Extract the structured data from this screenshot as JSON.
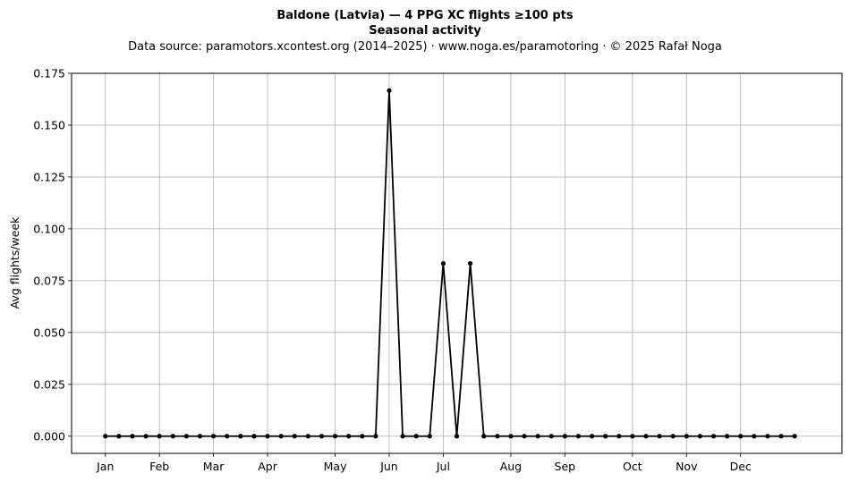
{
  "chart_data": {
    "type": "line",
    "title": "Baldone (Latvia)  —  4 PPG XC flights ≥100 pts",
    "subtitle": "Seasonal activity",
    "source": "Data source: paramotors.xcontest.org (2014–2025)  ·  www.noga.es/paramotoring  ·  © 2025 Rafał Noga",
    "xlabel": "",
    "ylabel": "Avg flights/week",
    "ylim": [
      -0.0083,
      0.175
    ],
    "yticks": [
      "0.000",
      "0.025",
      "0.050",
      "0.075",
      "0.100",
      "0.125",
      "0.150",
      "0.175"
    ],
    "xlim": [
      -2.5,
      54.5
    ],
    "xticks": [
      {
        "label": "Jan",
        "week": 0
      },
      {
        "label": "Feb",
        "week": 4
      },
      {
        "label": "Mar",
        "week": 8
      },
      {
        "label": "Apr",
        "week": 12
      },
      {
        "label": "May",
        "week": 17
      },
      {
        "label": "Jun",
        "week": 21
      },
      {
        "label": "Jul",
        "week": 25
      },
      {
        "label": "Aug",
        "week": 30
      },
      {
        "label": "Sep",
        "week": 34
      },
      {
        "label": "Oct",
        "week": 39
      },
      {
        "label": "Nov",
        "week": 43
      },
      {
        "label": "Dec",
        "week": 47
      }
    ],
    "grid": true,
    "color": "#000000",
    "series": [
      {
        "name": "",
        "values": [
          0,
          0,
          0,
          0,
          0,
          0,
          0,
          0,
          0,
          0,
          0,
          0,
          0,
          0,
          0,
          0,
          0,
          0,
          0,
          0,
          0,
          0.1667,
          0,
          0,
          0,
          0.0833,
          0,
          0.0833,
          0,
          0,
          0,
          0,
          0,
          0,
          0,
          0,
          0,
          0,
          0,
          0,
          0,
          0,
          0,
          0,
          0,
          0,
          0,
          0,
          0,
          0,
          0,
          0
        ]
      }
    ]
  }
}
